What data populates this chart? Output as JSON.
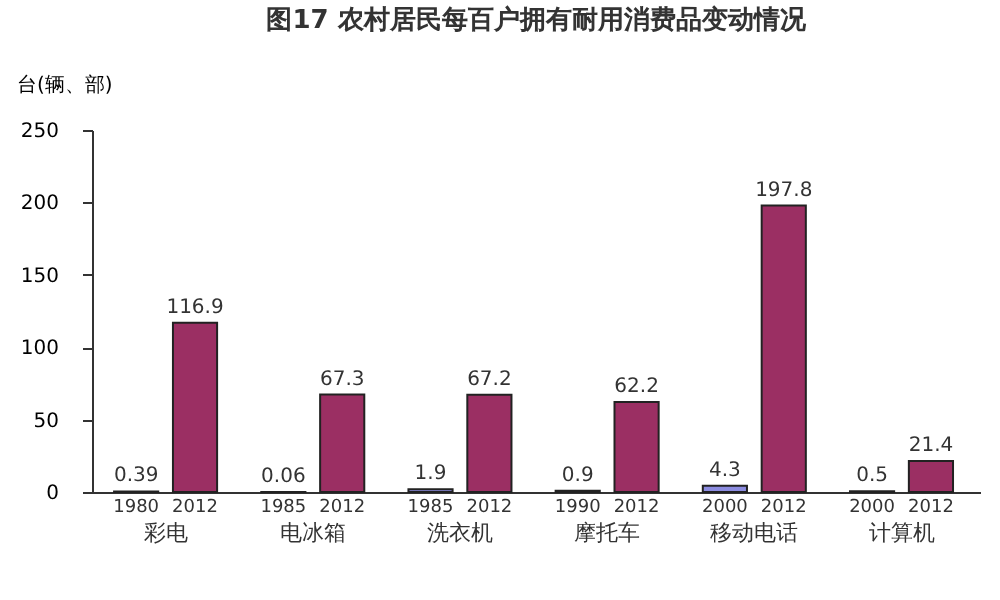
{
  "chart_data": {
    "type": "bar",
    "title": "图17 农村居民每百户拥有耐用消费品变动情况",
    "ylabel": "台(辆、部)",
    "categories": [
      "1980",
      "2012",
      "1985",
      "2012",
      "1985",
      "2012",
      "1990",
      "2012",
      "2000",
      "2012",
      "2000",
      "2012"
    ],
    "values": [
      0.39,
      116.9,
      0.06,
      67.3,
      1.9,
      67.2,
      0.9,
      62.2,
      4.3,
      197.8,
      0.5,
      21.4
    ],
    "colors": [
      "#8c8ce0",
      "#9b2f63",
      "#8c8ce0",
      "#9b2f63",
      "#8c8ce0",
      "#9b2f63",
      "#8c8ce0",
      "#9b2f63",
      "#8c8ce0",
      "#9b2f63",
      "#8c8ce0",
      "#9b2f63"
    ],
    "data_labels": true,
    "annotations": [
      "彩电",
      "电冰箱",
      "洗衣机",
      "摩托车",
      "移动电话",
      "计算机"
    ],
    "ylim": [
      0,
      250
    ],
    "yticks": [
      0,
      50,
      100,
      150,
      200,
      250
    ]
  }
}
